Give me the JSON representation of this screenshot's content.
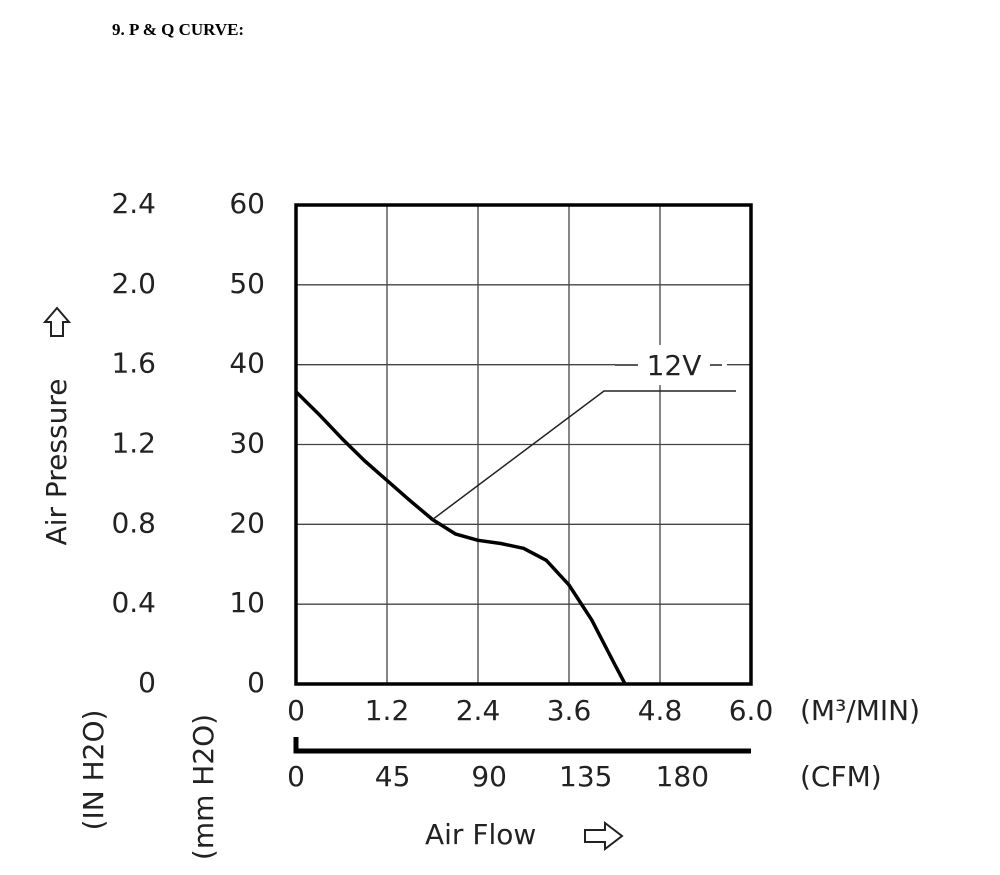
{
  "chart_data": {
    "type": "line",
    "title": "9. P & Q CURVE:",
    "x_label": "Air Flow",
    "y_label": "Air Pressure",
    "x_unit": "(M³/MIN)",
    "x2_unit": "(CFM)",
    "y_unit": "(mm H2O)",
    "y2_unit": "(IN H2O)",
    "x": [
      0,
      0.3,
      0.6,
      0.9,
      1.2,
      1.5,
      1.8,
      2.1,
      2.4,
      2.7,
      3.0,
      3.3,
      3.6,
      3.9,
      4.2,
      4.34
    ],
    "series": [
      {
        "name": "12V",
        "color": "#000000",
        "values": [
          36.6,
          33.8,
          30.8,
          28.0,
          25.5,
          23.0,
          20.6,
          18.8,
          18.0,
          17.6,
          17.0,
          15.5,
          12.4,
          8.0,
          2.5,
          0
        ]
      }
    ],
    "xlim": [
      0,
      6
    ],
    "xticks": [
      0,
      1.2,
      2.4,
      3.6,
      4.8,
      {
        "value": 6,
        "label": "6.0"
      }
    ],
    "x2lim": [
      0,
      212
    ],
    "x2ticks": [
      0,
      45,
      90,
      135,
      180
    ],
    "ylim": [
      0,
      60
    ],
    "yticks": [
      0,
      10,
      20,
      30,
      40,
      50,
      60
    ],
    "y2lim": [
      0,
      2.4
    ],
    "y2ticks": [
      0,
      0.4,
      0.8,
      1.2,
      1.6,
      {
        "value": 2,
        "label": "2.0"
      },
      2.4
    ],
    "grid": true
  }
}
